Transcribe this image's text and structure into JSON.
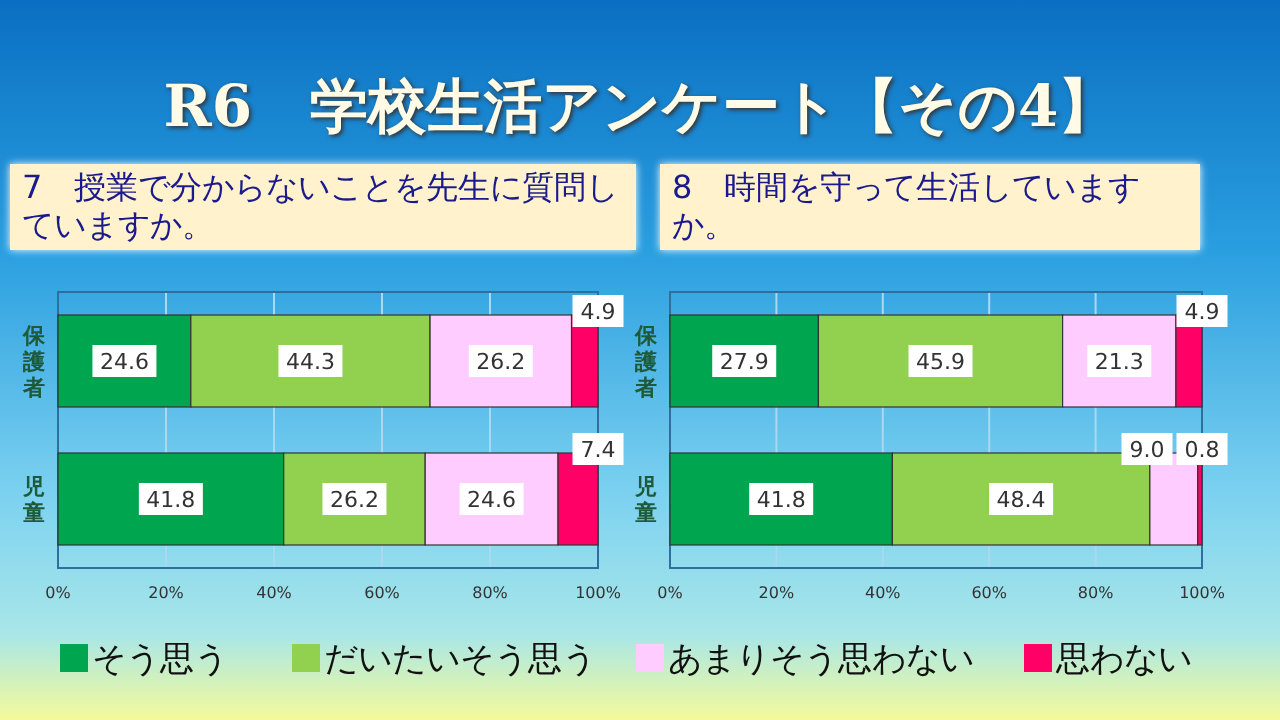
{
  "chart_data": [
    {
      "type": "bar",
      "orientation": "horizontal",
      "stacked": true,
      "title": "7　授業で分からないことを先生に質問していますか。",
      "annotations": [
        "R6　学校生活アンケート【その4】"
      ],
      "categories": [
        "保護者",
        "児童"
      ],
      "series": [
        {
          "name": "そう思う",
          "color": "#00a550",
          "values": [
            24.6,
            41.8
          ]
        },
        {
          "name": "だいたいそう思う",
          "color": "#92d050",
          "values": [
            44.3,
            26.2
          ]
        },
        {
          "name": "あまりそう思わない",
          "color": "#ffccff",
          "values": [
            26.2,
            24.6
          ]
        },
        {
          "name": "思わない",
          "color": "#ff0066",
          "values": [
            4.9,
            7.4
          ]
        }
      ],
      "xlim": [
        0,
        100
      ],
      "xticks": [
        {
          "value": 0,
          "label": "0%"
        },
        {
          "value": 20,
          "label": "20%"
        },
        {
          "value": 40,
          "label": "40%"
        },
        {
          "value": 60,
          "label": "60%"
        },
        {
          "value": 80,
          "label": "80%"
        },
        {
          "value": 100,
          "label": "100%"
        }
      ],
      "grid": "x",
      "data_labels": true,
      "legend": "bottom"
    },
    {
      "type": "bar",
      "orientation": "horizontal",
      "stacked": true,
      "title": "8　時間を守って生活していますか。",
      "categories": [
        "保護者",
        "児童"
      ],
      "series": [
        {
          "color": "#00a550",
          "values": [
            27.9,
            41.8
          ]
        },
        {
          "color": "#92d050",
          "values": [
            45.9,
            48.4
          ]
        },
        {
          "color": "#ffccff",
          "values": [
            21.3,
            9.0
          ],
          "value_labels": [
            "21.3",
            "9.0"
          ]
        },
        {
          "color": "#ff0066",
          "values": [
            4.9,
            0.8
          ]
        }
      ],
      "xlim": [
        0,
        100
      ],
      "xticks": [
        {
          "value": 0,
          "label": "0%"
        },
        {
          "value": 20,
          "label": "20%"
        },
        {
          "value": 40,
          "label": "40%"
        },
        {
          "value": 60,
          "label": "60%"
        },
        {
          "value": 80,
          "label": "80%"
        },
        {
          "value": 100,
          "label": "100%"
        }
      ],
      "grid": "x",
      "data_labels": true
    }
  ]
}
